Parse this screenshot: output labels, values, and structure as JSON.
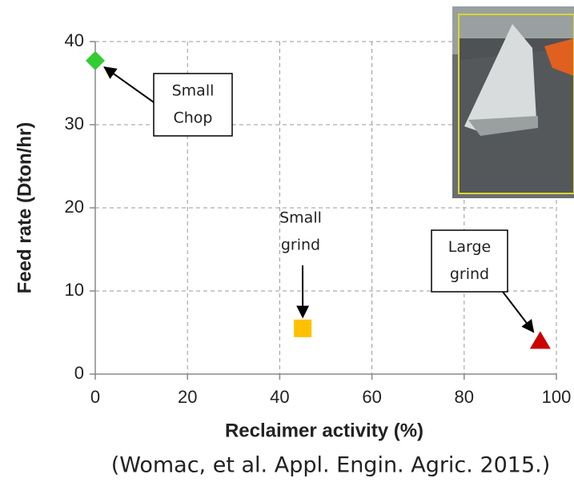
{
  "chart_data": {
    "type": "scatter",
    "xlabel": "Reclaimer activity (%)",
    "ylabel": "Feed rate (Dton/hr)",
    "caption": "(Womac, et al. Appl. Engin. Agric. 2015.)",
    "points": [
      {
        "x": 0,
        "y": 37.7,
        "color": "#33cc33",
        "marker": "diamond"
      },
      {
        "x": 45,
        "y": 5.5,
        "color": "#ffc000",
        "marker": "square"
      },
      {
        "x": 96.5,
        "y": 4,
        "color": "#cc0000",
        "marker": "triangle"
      }
    ],
    "annotations": [
      {
        "lines": [
          "Small",
          "Chop"
        ],
        "boxed": true
      },
      {
        "lines": [
          "Small",
          "grind"
        ],
        "boxed": false
      },
      {
        "lines": [
          "Large",
          "grind"
        ],
        "boxed": true
      }
    ],
    "xlim": [
      0,
      100
    ],
    "xticks": [
      0,
      20,
      40,
      60,
      80,
      100
    ],
    "ylim": [
      0,
      40
    ],
    "yticks": [
      0,
      10,
      20,
      30,
      40
    ],
    "grid": true
  }
}
